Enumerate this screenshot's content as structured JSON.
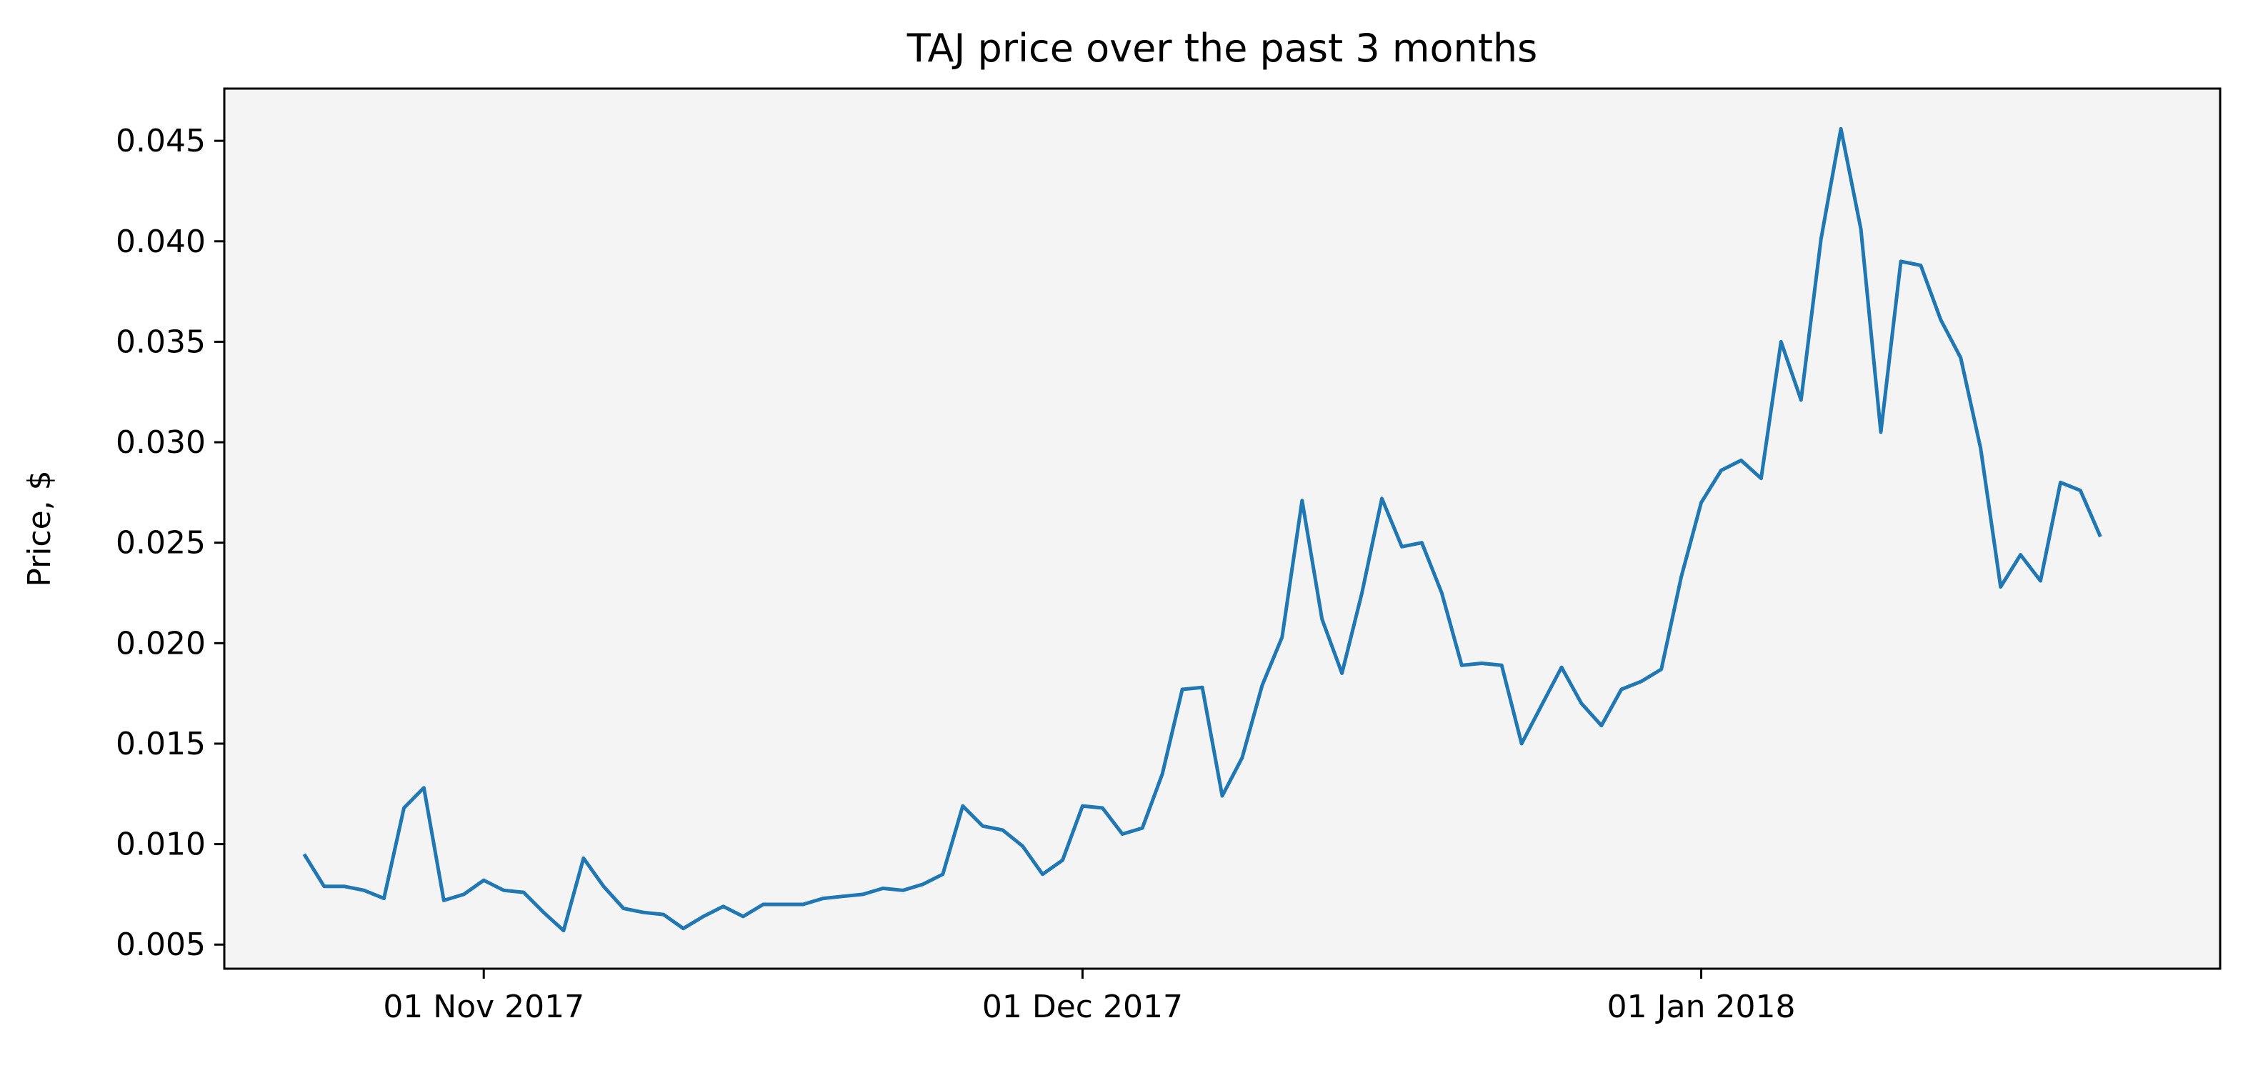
{
  "chart_data": {
    "type": "line",
    "title": "TAJ price over the past 3 months",
    "xlabel": "",
    "ylabel": "Price, $",
    "grid": false,
    "legend": "none",
    "colors": {
      "line": "#1f77b4",
      "plot_background": "#f4f4f4",
      "axes": "#000000"
    },
    "x_start_date": "2017-10-23",
    "x_step_days": 1,
    "xlim": [
      "2017-10-19",
      "2018-01-27"
    ],
    "ylim": [
      0.0038,
      0.0476
    ],
    "xticks": [
      {
        "date": "2017-11-01",
        "label": "01 Nov 2017"
      },
      {
        "date": "2017-12-01",
        "label": "01 Dec 2017"
      },
      {
        "date": "2018-01-01",
        "label": "01 Jan 2018"
      }
    ],
    "yticks": [
      {
        "value": 0.005,
        "label": "0.005"
      },
      {
        "value": 0.01,
        "label": "0.010"
      },
      {
        "value": 0.015,
        "label": "0.015"
      },
      {
        "value": 0.02,
        "label": "0.020"
      },
      {
        "value": 0.025,
        "label": "0.025"
      },
      {
        "value": 0.03,
        "label": "0.030"
      },
      {
        "value": 0.035,
        "label": "0.035"
      },
      {
        "value": 0.04,
        "label": "0.040"
      },
      {
        "value": 0.045,
        "label": "0.045"
      }
    ],
    "series": [
      {
        "values": [
          0.0095,
          0.0079,
          0.0079,
          0.0077,
          0.0073,
          0.0118,
          0.0128,
          0.0072,
          0.0075,
          0.0082,
          0.0077,
          0.0076,
          0.0066,
          0.0057,
          0.0093,
          0.0079,
          0.0068,
          0.0066,
          0.0065,
          0.0058,
          0.0064,
          0.0069,
          0.0064,
          0.007,
          0.007,
          0.007,
          0.0073,
          0.0074,
          0.0075,
          0.0078,
          0.0077,
          0.008,
          0.0085,
          0.0119,
          0.0109,
          0.0107,
          0.0099,
          0.0085,
          0.0092,
          0.0119,
          0.0118,
          0.0105,
          0.0108,
          0.0135,
          0.0177,
          0.0178,
          0.0124,
          0.0143,
          0.0179,
          0.0203,
          0.0271,
          0.0212,
          0.0185,
          0.0225,
          0.0272,
          0.0248,
          0.025,
          0.0225,
          0.0189,
          0.019,
          0.0189,
          0.015,
          0.0169,
          0.0188,
          0.017,
          0.0159,
          0.0177,
          0.0181,
          0.0187,
          0.0233,
          0.027,
          0.0286,
          0.0291,
          0.0282,
          0.035,
          0.0321,
          0.0401,
          0.0456,
          0.0406,
          0.0305,
          0.039,
          0.0388,
          0.0361,
          0.0342,
          0.0297,
          0.0228,
          0.0244,
          0.0231,
          0.028,
          0.0276,
          0.0253
        ]
      }
    ]
  }
}
